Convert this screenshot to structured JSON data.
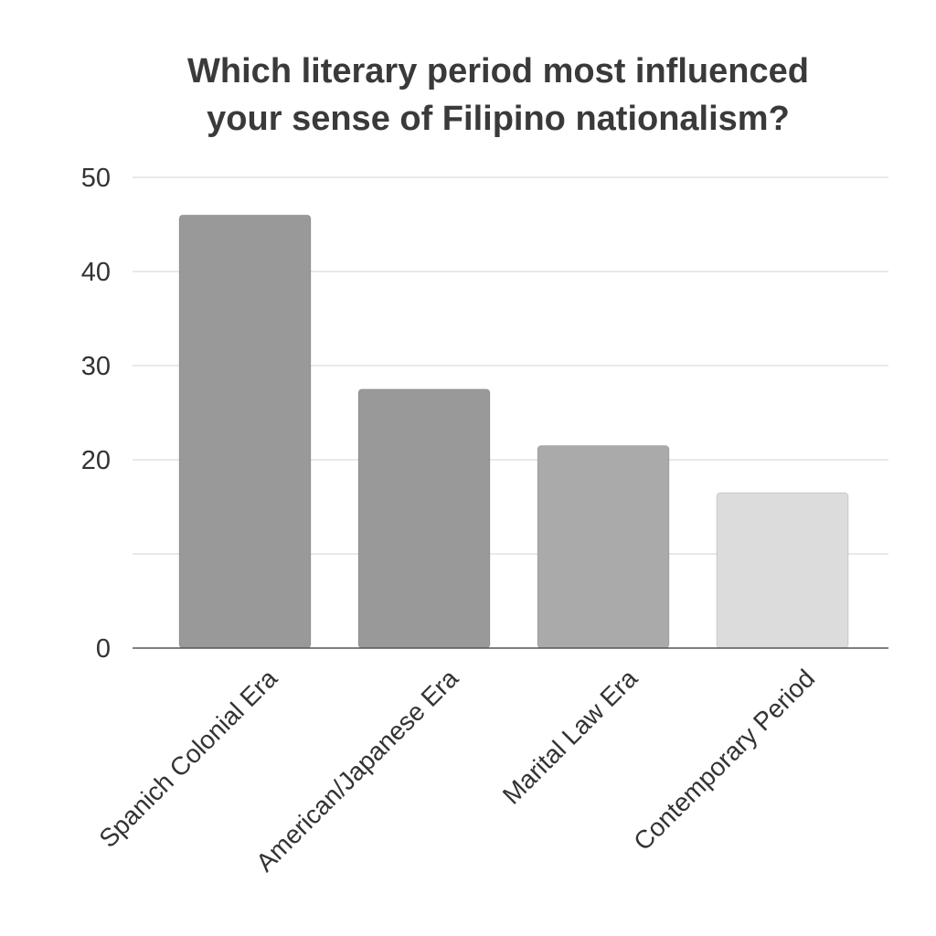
{
  "chart_data": {
    "type": "bar",
    "title_lines": [
      "Which literary period most influenced",
      "your sense of Filipino nationalism?"
    ],
    "categories": [
      "Spanich Colonial Era",
      "American/Japanese Era",
      "Marital Law Era",
      "Contemporary Period"
    ],
    "values": [
      46,
      27.5,
      21.5,
      16.5
    ],
    "bar_colors": [
      "#999999",
      "#999999",
      "#aaaaaa",
      "#dcdcdc"
    ],
    "ylim": [
      0,
      50
    ],
    "yticks": [
      0,
      10,
      20,
      30,
      40,
      50
    ],
    "ytick_labels": [
      "0",
      "",
      "20",
      "30",
      "40",
      "50"
    ],
    "grid": true,
    "gridline_color": "#dcdcdc",
    "axis_color": "#555555"
  }
}
